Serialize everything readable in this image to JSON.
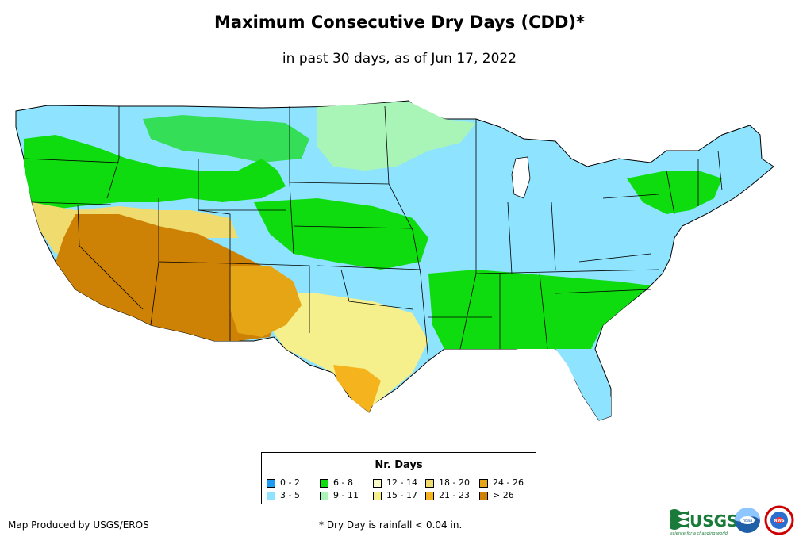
{
  "title": "Maximum Consecutive Dry Days (CDD)*",
  "subtitle": "in past 30 days, as of Jun 17, 2022",
  "legend": {
    "title": "Nr. Days",
    "items": [
      {
        "label": "0 - 2",
        "color": "#1E9BF0"
      },
      {
        "label": "3 - 5",
        "color": "#8EE3FF"
      },
      {
        "label": "6 - 8",
        "color": "#0FDC0F"
      },
      {
        "label": "9 - 11",
        "color": "#A9F5B8"
      },
      {
        "label": "12 - 14",
        "color": "#FAFAC8"
      },
      {
        "label": "15 - 17",
        "color": "#F5F08C"
      },
      {
        "label": "18 - 20",
        "color": "#F0DC6E"
      },
      {
        "label": "21 - 23",
        "color": "#F5B41E"
      },
      {
        "label": "24 - 26",
        "color": "#E6A514"
      },
      {
        "label": "> 26",
        "color": "#CD8205"
      }
    ]
  },
  "footer": {
    "producer": "Map Produced by USGS/EROS",
    "note": "* Dry Day is rainfall < 0.04 in."
  },
  "logos": {
    "usgs": "USGS",
    "usgs_tagline": "science for a changing world",
    "noaa": "noaa",
    "nws": "NWS"
  }
}
